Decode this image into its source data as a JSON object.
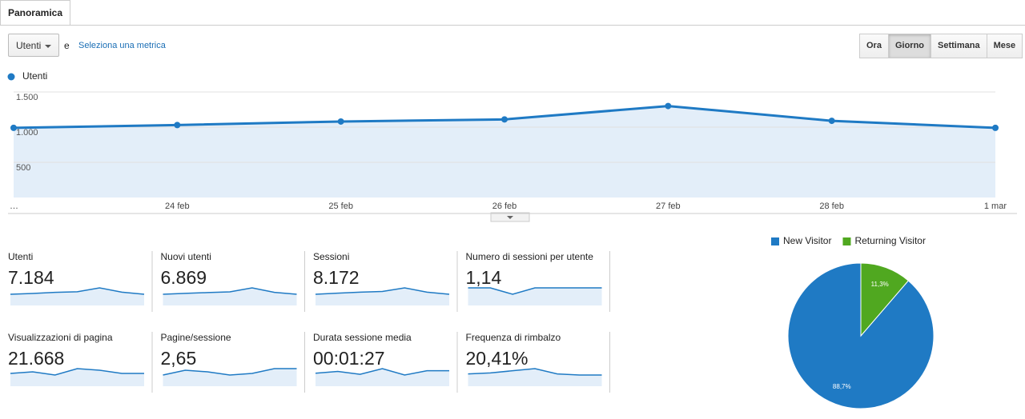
{
  "tab": "Panoramica",
  "metric_select": "Utenti",
  "connector": "e",
  "select_metric_link": "Seleziona una metrica",
  "time_buttons": [
    "Ora",
    "Giorno",
    "Settimana",
    "Mese"
  ],
  "selected_time_button": 1,
  "chart_data": [
    {
      "type": "line",
      "categories": [
        "…",
        "24 feb",
        "25 feb",
        "26 feb",
        "27 feb",
        "28 feb",
        "1 mar"
      ],
      "series": [
        {
          "name": "Utenti",
          "color": "#1f7ac4",
          "values": [
            990,
            1030,
            1080,
            1110,
            1300,
            1090,
            990
          ]
        }
      ],
      "ylim": [
        0,
        1500
      ],
      "yticks": [
        {
          "value": 500,
          "label": "500"
        },
        {
          "value": 1000,
          "label": "1.000"
        },
        {
          "value": 1500,
          "label": "1.500"
        }
      ],
      "grid": true
    },
    {
      "type": "pie",
      "series": [
        {
          "name": "New Visitor",
          "color": "#1f7ac4"
        },
        {
          "name": "Returning Visitor",
          "color": "#50a820"
        }
      ],
      "values": [
        88.7,
        11.3
      ],
      "value_labels": [
        "88,7%",
        "11,3%"
      ]
    }
  ],
  "scorecards": [
    {
      "label": "Utenti",
      "value": "7.184",
      "trend": [
        990,
        1030,
        1080,
        1110,
        1300,
        1090,
        990
      ]
    },
    {
      "label": "Nuovi utenti",
      "value": "6.869",
      "trend": [
        930,
        970,
        1000,
        1030,
        1200,
        1010,
        930
      ]
    },
    {
      "label": "Sessioni",
      "value": "8.172",
      "trend": [
        1100,
        1150,
        1200,
        1230,
        1400,
        1200,
        1100
      ]
    },
    {
      "label": "Numero di sessioni per utente",
      "value": "1,14",
      "trend": [
        1.14,
        1.14,
        1.13,
        1.14,
        1.14,
        1.14,
        1.14
      ]
    },
    {
      "label": "Visualizzazioni di pagina",
      "value": "21.668",
      "trend": [
        3000,
        3050,
        2950,
        3150,
        3100,
        3000,
        3000
      ]
    },
    {
      "label": "Pagine/sessione",
      "value": "2,65",
      "trend": [
        2.6,
        2.66,
        2.64,
        2.6,
        2.62,
        2.68,
        2.68
      ]
    },
    {
      "label": "Durata sessione media",
      "value": "00:01:27",
      "trend": [
        85,
        90,
        82,
        98,
        80,
        92,
        92
      ]
    },
    {
      "label": "Frequenza di rimbalzo",
      "value": "20,41%",
      "trend": [
        19,
        20,
        22,
        24,
        19,
        18,
        18
      ]
    }
  ]
}
